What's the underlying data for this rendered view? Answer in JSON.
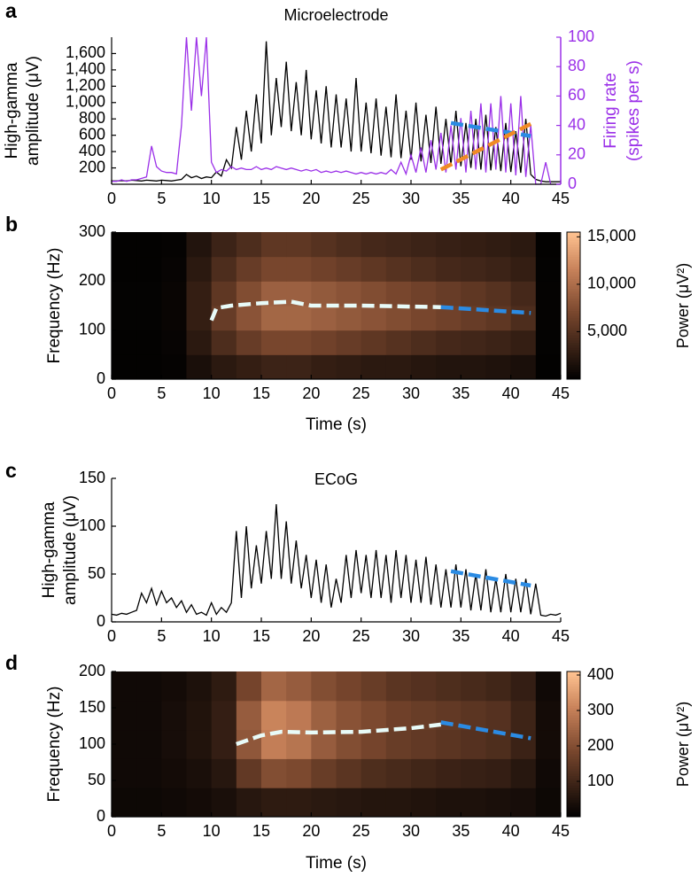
{
  "chart_data": [
    {
      "type": "line",
      "panel_label": "a",
      "title": "Microelectrode",
      "ylabel": [
        "High-gamma",
        "amplitude (μV)"
      ],
      "y2label": [
        "Firing rate",
        "(spikes per s)"
      ],
      "xlim": [
        0,
        45
      ],
      "xticks": [
        0,
        5,
        10,
        15,
        20,
        25,
        30,
        35,
        40,
        45
      ],
      "ylim": [
        0,
        1800
      ],
      "yticks": [
        200,
        400,
        600,
        800,
        {
          "value": 1000,
          "label": "1,000"
        },
        {
          "value": 1200,
          "label": "1,200"
        },
        {
          "value": 1400,
          "label": "1,400"
        },
        {
          "value": 1600,
          "label": "1,600"
        }
      ],
      "y2lim": [
        0,
        100
      ],
      "y2ticks": [
        0,
        20,
        40,
        60,
        80,
        100
      ],
      "x": [
        0,
        0.5,
        1,
        1.5,
        2,
        2.5,
        3,
        3.5,
        4,
        4.5,
        5,
        5.5,
        6,
        6.5,
        7,
        7.5,
        8,
        8.5,
        9,
        9.5,
        10,
        10.5,
        11,
        11.5,
        12,
        12.5,
        13,
        13.5,
        14,
        14.5,
        15,
        15.5,
        16,
        16.5,
        17,
        17.5,
        18,
        18.5,
        19,
        19.5,
        20,
        20.5,
        21,
        21.5,
        22,
        22.5,
        23,
        23.5,
        24,
        24.5,
        25,
        25.5,
        26,
        26.5,
        27,
        27.5,
        28,
        28.5,
        29,
        29.5,
        30,
        30.5,
        31,
        31.5,
        32,
        32.5,
        33,
        33.5,
        34,
        34.5,
        35,
        35.5,
        36,
        36.5,
        37,
        37.5,
        38,
        38.5,
        39,
        39.5,
        40,
        40.5,
        41,
        41.5,
        42,
        42.5,
        43,
        43.5,
        44,
        44.5,
        45
      ],
      "series": [
        {
          "color": "#000000",
          "axis": "y",
          "values": [
            40,
            40,
            45,
            40,
            50,
            45,
            40,
            50,
            45,
            40,
            50,
            45,
            40,
            50,
            60,
            120,
            80,
            100,
            70,
            90,
            80,
            150,
            100,
            300,
            200,
            700,
            300,
            900,
            400,
            1100,
            500,
            1750,
            600,
            1300,
            700,
            1500,
            650,
            1250,
            600,
            1400,
            550,
            1150,
            500,
            1200,
            450,
            1100,
            450,
            1050,
            400,
            1300,
            400,
            1000,
            380,
            1050,
            350,
            950,
            330,
            1100,
            320,
            900,
            300,
            1000,
            280,
            850,
            260,
            950,
            250,
            800,
            240,
            900,
            220,
            750,
            200,
            800,
            180,
            850,
            170,
            700,
            160,
            750,
            150,
            650,
            140,
            800,
            120,
            60,
            40,
            30,
            30,
            30,
            30
          ]
        },
        {
          "color": "#9b30e8",
          "axis": "y2",
          "values": [
            2,
            2,
            3,
            2,
            3,
            3,
            4,
            5,
            26,
            12,
            9,
            8,
            8,
            7,
            40,
            100,
            50,
            100,
            60,
            100,
            15,
            8,
            10,
            9,
            12,
            10,
            11,
            10,
            10,
            12,
            10,
            11,
            10,
            12,
            11,
            10,
            11,
            10,
            9,
            10,
            9,
            10,
            8,
            9,
            8,
            9,
            8,
            9,
            8,
            7,
            8,
            7,
            8,
            7,
            8,
            7,
            10,
            7,
            15,
            7,
            20,
            8,
            25,
            8,
            30,
            10,
            35,
            8,
            40,
            10,
            45,
            8,
            50,
            10,
            55,
            8,
            55,
            10,
            60,
            8,
            55,
            6,
            60,
            5,
            40,
            0,
            0,
            15,
            0,
            0,
            0
          ]
        }
      ],
      "overlays": [
        {
          "color": "#2b8be3",
          "axis": "y",
          "x": [
            34,
            42
          ],
          "values": [
            750,
            590
          ]
        },
        {
          "color": "#f08a24",
          "axis": "y2",
          "x": [
            33,
            42
          ],
          "values": [
            10,
            41
          ]
        }
      ]
    },
    {
      "type": "heatmap",
      "panel_label": "b",
      "ylabel": [
        "Frequency (Hz)"
      ],
      "xlabel": "Time (s)",
      "xlim": [
        0,
        45
      ],
      "xticks": [
        0,
        5,
        10,
        15,
        20,
        25,
        30,
        35,
        40,
        45
      ],
      "ylim": [
        0,
        300
      ],
      "yticks": [
        0,
        100,
        200,
        300
      ],
      "x": [
        1.25,
        3.75,
        6.25,
        8.75,
        11.25,
        13.75,
        16.25,
        18.75,
        21.25,
        23.75,
        26.25,
        28.75,
        31.25,
        33.75,
        36.25,
        38.75,
        41.25,
        43.75
      ],
      "y": [
        25,
        75,
        125,
        175,
        225,
        275
      ],
      "z": [
        [
          200,
          200,
          300,
          1500,
          2500,
          3000,
          3500,
          3500,
          3000,
          2800,
          2500,
          2500,
          2200,
          2000,
          2000,
          1800,
          1500,
          200
        ],
        [
          200,
          200,
          400,
          2500,
          4500,
          6000,
          7000,
          7000,
          6500,
          6000,
          5500,
          5000,
          4500,
          4000,
          3800,
          3500,
          3000,
          250
        ],
        [
          250,
          250,
          500,
          3000,
          6000,
          8000,
          9500,
          9500,
          9000,
          8500,
          8000,
          7500,
          7000,
          6500,
          6000,
          5500,
          4500,
          300
        ],
        [
          250,
          250,
          500,
          3000,
          5500,
          7500,
          9000,
          9000,
          8500,
          8000,
          7500,
          7000,
          6500,
          6000,
          5500,
          5000,
          4000,
          300
        ],
        [
          200,
          200,
          400,
          2500,
          4500,
          6000,
          7000,
          7000,
          6500,
          6000,
          5500,
          5000,
          4500,
          4000,
          3800,
          3500,
          3000,
          250
        ],
        [
          200,
          200,
          300,
          2000,
          3500,
          4500,
          5500,
          5500,
          5000,
          4500,
          4000,
          3800,
          3500,
          3200,
          3000,
          2800,
          2500,
          200
        ]
      ],
      "colorbar": {
        "label": "Power (μV²)",
        "lim": [
          0,
          15500
        ],
        "ticks": [
          {
            "value": 5000,
            "label": "5,000"
          },
          {
            "value": 10000,
            "label": "10,000"
          },
          {
            "value": 15000,
            "label": "15,000"
          }
        ]
      },
      "overlays": [
        {
          "color": "#e8fbf8",
          "x": [
            10,
            10.5,
            12,
            15,
            18,
            20,
            25,
            30,
            33
          ],
          "values": [
            120,
            145,
            150,
            155,
            158,
            150,
            150,
            148,
            147
          ]
        },
        {
          "color": "#2b8be3",
          "x": [
            33,
            42
          ],
          "values": [
            147,
            135
          ]
        }
      ]
    },
    {
      "type": "line",
      "panel_label": "c",
      "title": "ECoG",
      "ylabel": [
        "High-gamma",
        "amplitude (μV)"
      ],
      "xlim": [
        0,
        45
      ],
      "xticks": [
        0,
        5,
        10,
        15,
        20,
        25,
        30,
        35,
        40,
        45
      ],
      "ylim": [
        0,
        150
      ],
      "yticks": [
        0,
        50,
        100,
        150
      ],
      "x": [
        0,
        0.5,
        1,
        1.5,
        2,
        2.5,
        3,
        3.5,
        4,
        4.5,
        5,
        5.5,
        6,
        6.5,
        7,
        7.5,
        8,
        8.5,
        9,
        9.5,
        10,
        10.5,
        11,
        11.5,
        12,
        12.5,
        13,
        13.5,
        14,
        14.5,
        15,
        15.5,
        16,
        16.5,
        17,
        17.5,
        18,
        18.5,
        19,
        19.5,
        20,
        20.5,
        21,
        21.5,
        22,
        22.5,
        23,
        23.5,
        24,
        24.5,
        25,
        25.5,
        26,
        26.5,
        27,
        27.5,
        28,
        28.5,
        29,
        29.5,
        30,
        30.5,
        31,
        31.5,
        32,
        32.5,
        33,
        33.5,
        34,
        34.5,
        35,
        35.5,
        36,
        36.5,
        37,
        37.5,
        38,
        38.5,
        39,
        39.5,
        40,
        40.5,
        41,
        41.5,
        42,
        42.5,
        43,
        43.5,
        44,
        44.5,
        45
      ],
      "series": [
        {
          "color": "#000000",
          "axis": "y",
          "values": [
            8,
            7,
            9,
            8,
            10,
            12,
            30,
            20,
            35,
            18,
            32,
            20,
            25,
            15,
            22,
            10,
            18,
            8,
            10,
            7,
            20,
            8,
            15,
            10,
            20,
            95,
            25,
            100,
            35,
            80,
            40,
            95,
            45,
            123,
            45,
            105,
            40,
            85,
            35,
            70,
            25,
            65,
            20,
            60,
            15,
            45,
            20,
            70,
            25,
            75,
            30,
            70,
            25,
            75,
            25,
            70,
            20,
            75,
            25,
            70,
            20,
            65,
            20,
            68,
            18,
            60,
            15,
            55,
            15,
            60,
            15,
            55,
            12,
            50,
            12,
            55,
            10,
            45,
            10,
            50,
            10,
            45,
            10,
            45,
            8,
            40,
            7,
            6,
            8,
            7,
            9
          ]
        }
      ],
      "overlays": [
        {
          "color": "#2b8be3",
          "axis": "y",
          "x": [
            34,
            42
          ],
          "values": [
            53,
            38
          ]
        }
      ]
    },
    {
      "type": "heatmap",
      "panel_label": "d",
      "ylabel": [
        "Frequency (Hz)"
      ],
      "xlabel": "Time (s)",
      "xlim": [
        0,
        45
      ],
      "xticks": [
        0,
        5,
        10,
        15,
        20,
        25,
        30,
        35,
        40,
        45
      ],
      "ylim": [
        0,
        200
      ],
      "yticks": [
        0,
        50,
        100,
        150,
        200
      ],
      "x": [
        1.25,
        3.75,
        6.25,
        8.75,
        11.25,
        13.75,
        16.25,
        18.75,
        21.25,
        23.75,
        26.25,
        28.75,
        31.25,
        33.75,
        36.25,
        38.75,
        41.25,
        43.75
      ],
      "y": [
        20,
        60,
        100,
        140,
        180
      ],
      "z": [
        [
          20,
          20,
          25,
          30,
          40,
          60,
          70,
          70,
          65,
          60,
          55,
          55,
          50,
          45,
          45,
          40,
          35,
          20
        ],
        [
          25,
          25,
          30,
          40,
          60,
          150,
          200,
          190,
          160,
          140,
          120,
          110,
          100,
          90,
          85,
          80,
          60,
          25
        ],
        [
          25,
          25,
          35,
          50,
          80,
          220,
          300,
          280,
          230,
          200,
          180,
          160,
          150,
          140,
          130,
          120,
          90,
          30
        ],
        [
          25,
          25,
          35,
          50,
          80,
          230,
          310,
          290,
          240,
          210,
          190,
          170,
          160,
          150,
          140,
          130,
          95,
          30
        ],
        [
          25,
          25,
          30,
          45,
          70,
          180,
          250,
          230,
          200,
          180,
          160,
          140,
          130,
          120,
          110,
          100,
          80,
          25
        ]
      ],
      "colorbar": {
        "label": "Power (μV²)",
        "lim": [
          0,
          410
        ],
        "ticks": [
          100,
          200,
          300,
          400
        ]
      },
      "overlays": [
        {
          "color": "#e8fbf8",
          "x": [
            12.5,
            15,
            17,
            20,
            25,
            30,
            33
          ],
          "values": [
            100,
            112,
            117,
            116,
            117,
            122,
            127
          ]
        },
        {
          "color": "#2b8be3",
          "x": [
            33,
            42
          ],
          "values": [
            130,
            108
          ]
        }
      ]
    }
  ]
}
